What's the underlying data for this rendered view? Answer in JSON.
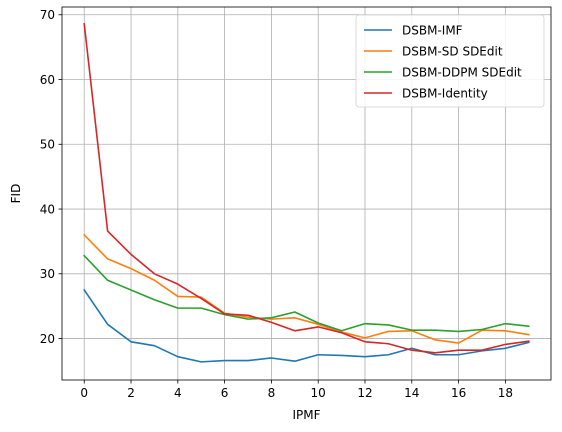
{
  "chart_data": {
    "type": "line",
    "xlabel": "IPMF",
    "ylabel": "FID",
    "xlim": [
      -0.95,
      19.95
    ],
    "ylim": [
      13.6,
      71.2
    ],
    "xticks": [
      0,
      2,
      4,
      6,
      8,
      10,
      12,
      14,
      16,
      18
    ],
    "yticks": [
      20,
      30,
      40,
      50,
      60,
      70
    ],
    "grid": true,
    "legend_position": "top-right",
    "x": [
      0,
      1,
      2,
      3,
      4,
      5,
      6,
      7,
      8,
      9,
      10,
      11,
      12,
      13,
      14,
      15,
      16,
      17,
      18,
      19
    ],
    "series": [
      {
        "name": "DSBM-IMF",
        "color": "#1f77b4",
        "values": [
          27.5,
          22.2,
          19.5,
          18.9,
          17.2,
          16.4,
          16.6,
          16.6,
          17.0,
          16.5,
          17.5,
          17.4,
          17.2,
          17.5,
          18.5,
          17.5,
          17.5,
          18.1,
          18.5,
          19.4
        ]
      },
      {
        "name": "DSBM-SD SDEdit",
        "color": "#ff7f0e",
        "values": [
          36.0,
          32.3,
          30.8,
          29.0,
          26.5,
          26.4,
          23.9,
          23.3,
          23.0,
          23.2,
          22.2,
          21.0,
          20.1,
          21.1,
          21.2,
          19.8,
          19.3,
          21.3,
          21.2,
          20.6
        ]
      },
      {
        "name": "DSBM-DDPM SDEdit",
        "color": "#2ca02c",
        "values": [
          32.8,
          29.0,
          27.5,
          26.0,
          24.7,
          24.7,
          23.7,
          23.0,
          23.2,
          24.1,
          22.4,
          21.2,
          22.3,
          22.1,
          21.3,
          21.3,
          21.1,
          21.4,
          22.3,
          21.9
        ]
      },
      {
        "name": "DSBM-Identity",
        "color": "#d62728",
        "values": [
          68.6,
          36.6,
          33.0,
          30.0,
          28.4,
          26.2,
          23.8,
          23.6,
          22.5,
          21.2,
          21.8,
          20.9,
          19.5,
          19.2,
          18.2,
          17.8,
          18.2,
          18.2,
          19.1,
          19.6
        ]
      }
    ]
  }
}
